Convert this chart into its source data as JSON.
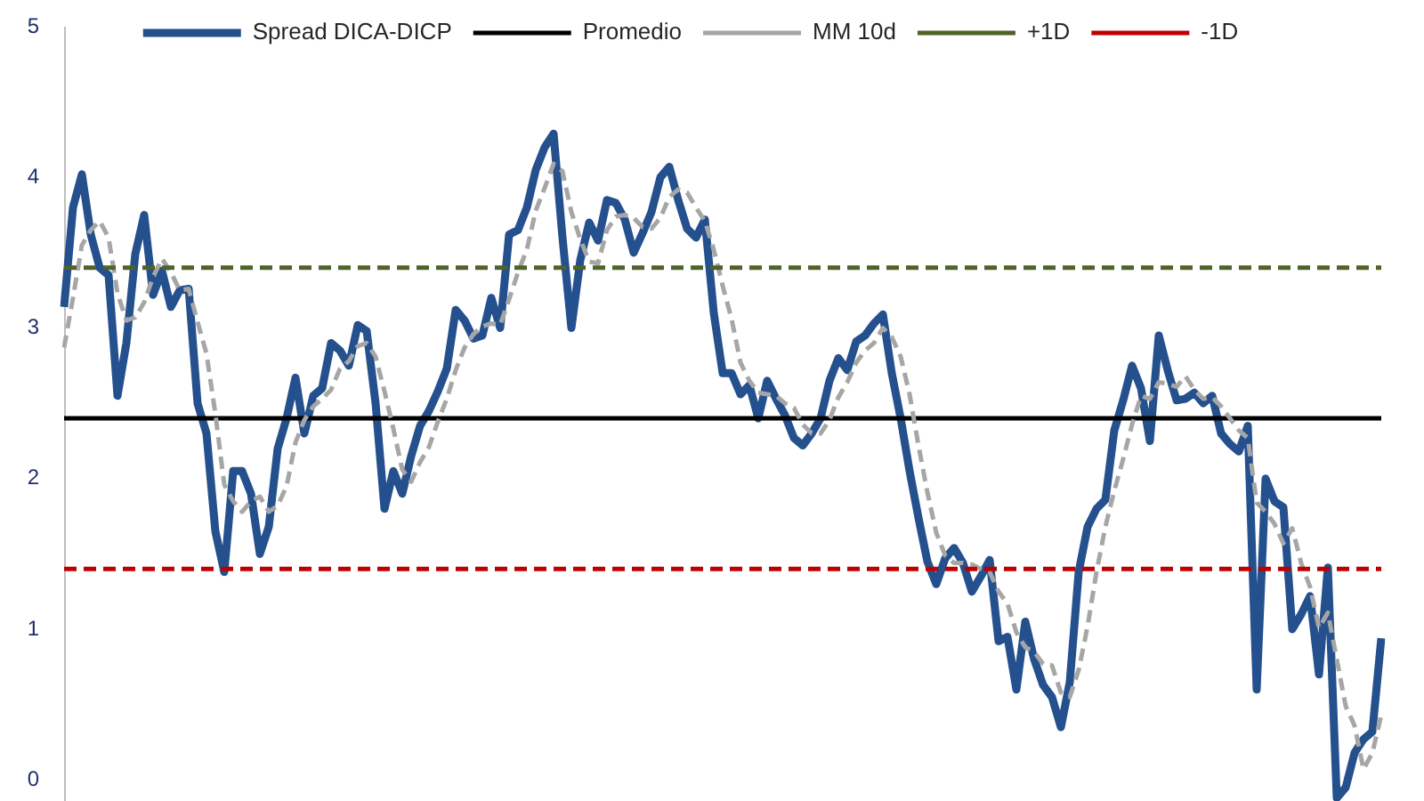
{
  "chart_data": {
    "type": "line",
    "categories": [
      null,
      null,
      null,
      null,
      null,
      null,
      null,
      null,
      null,
      null,
      null,
      null,
      null,
      null,
      null,
      null,
      null,
      null,
      null,
      null,
      null,
      null,
      null,
      null,
      null,
      null,
      null,
      null,
      null,
      null,
      null,
      null,
      null,
      null,
      null,
      null,
      null,
      null,
      null,
      null,
      null,
      null,
      null,
      null,
      null,
      null,
      null,
      null,
      null,
      null,
      null,
      null,
      null,
      null,
      null,
      null,
      null,
      null,
      null,
      null,
      null,
      null,
      null,
      null,
      null,
      null,
      null,
      null,
      null,
      null,
      null,
      null,
      null,
      null,
      null,
      null,
      null,
      null,
      null,
      null,
      null,
      null,
      null,
      null,
      null,
      null,
      null,
      null,
      null,
      null,
      null,
      null,
      null,
      null,
      null,
      null,
      null,
      null,
      null,
      null,
      null,
      null,
      null,
      null,
      null,
      null,
      null,
      null,
      null,
      null,
      null,
      null,
      null,
      null,
      null,
      null,
      null,
      null,
      null,
      null,
      null,
      null,
      null,
      null,
      null,
      null,
      null,
      null,
      null,
      null,
      null,
      null,
      null,
      null,
      null,
      null,
      null,
      null,
      null,
      null,
      null,
      null,
      null,
      null,
      null,
      null,
      null,
      null,
      null
    ],
    "series": [
      {
        "name": "Spread DICA-DICP",
        "color": "#24508e",
        "line_style": "solid",
        "values": [
          3.14,
          3.8,
          4.02,
          3.62,
          3.4,
          3.35,
          2.55,
          2.9,
          3.49,
          3.75,
          3.22,
          3.38,
          3.14,
          3.25,
          3.26,
          2.5,
          2.3,
          1.65,
          1.38,
          2.05,
          2.05,
          1.9,
          1.5,
          1.68,
          2.2,
          2.4,
          2.67,
          2.3,
          2.55,
          2.6,
          2.9,
          2.85,
          2.75,
          3.02,
          2.98,
          2.5,
          1.8,
          2.05,
          1.9,
          2.15,
          2.35,
          2.45,
          2.58,
          2.73,
          3.12,
          3.05,
          2.93,
          2.95,
          3.2,
          3.0,
          3.62,
          3.65,
          3.8,
          4.05,
          4.2,
          4.29,
          3.6,
          3.0,
          3.45,
          3.7,
          3.58,
          3.85,
          3.83,
          3.72,
          3.5,
          3.63,
          3.77,
          4.0,
          4.07,
          3.85,
          3.66,
          3.6,
          3.72,
          3.1,
          2.7,
          2.7,
          2.56,
          2.62,
          2.4,
          2.65,
          2.53,
          2.42,
          2.27,
          2.22,
          2.3,
          2.4,
          2.65,
          2.8,
          2.72,
          2.91,
          2.95,
          3.03,
          3.09,
          2.7,
          2.4,
          2.05,
          1.74,
          1.45,
          1.3,
          1.47,
          1.54,
          1.44,
          1.25,
          1.35,
          1.46,
          0.92,
          0.95,
          0.6,
          1.05,
          0.8,
          0.63,
          0.55,
          0.35,
          0.65,
          1.38,
          1.68,
          1.8,
          1.86,
          2.32,
          2.52,
          2.75,
          2.6,
          2.25,
          2.95,
          2.72,
          2.52,
          2.53,
          2.57,
          2.5,
          2.55,
          2.3,
          2.23,
          2.18,
          2.35,
          0.6,
          2.0,
          1.85,
          1.81,
          1.0,
          1.1,
          1.22,
          0.7,
          1.41,
          -0.12,
          -0.05,
          0.18,
          0.27,
          0.32,
          0.94
        ]
      },
      {
        "name": "Promedio",
        "color": "#000000",
        "line_style": "solid",
        "values": [
          2.4,
          2.4,
          2.4,
          2.4,
          2.4,
          2.4,
          2.4,
          2.4,
          2.4,
          2.4,
          2.4,
          2.4,
          2.4,
          2.4,
          2.4,
          2.4,
          2.4,
          2.4,
          2.4,
          2.4,
          2.4,
          2.4,
          2.4,
          2.4,
          2.4,
          2.4,
          2.4,
          2.4,
          2.4,
          2.4,
          2.4,
          2.4,
          2.4,
          2.4,
          2.4,
          2.4,
          2.4,
          2.4,
          2.4,
          2.4,
          2.4,
          2.4,
          2.4,
          2.4,
          2.4,
          2.4,
          2.4,
          2.4,
          2.4,
          2.4,
          2.4,
          2.4,
          2.4,
          2.4,
          2.4,
          2.4,
          2.4,
          2.4,
          2.4,
          2.4,
          2.4,
          2.4,
          2.4,
          2.4,
          2.4,
          2.4,
          2.4,
          2.4,
          2.4,
          2.4,
          2.4,
          2.4,
          2.4,
          2.4,
          2.4,
          2.4,
          2.4,
          2.4,
          2.4,
          2.4,
          2.4,
          2.4,
          2.4,
          2.4,
          2.4,
          2.4,
          2.4,
          2.4,
          2.4,
          2.4,
          2.4,
          2.4,
          2.4,
          2.4,
          2.4,
          2.4,
          2.4,
          2.4,
          2.4,
          2.4,
          2.4,
          2.4,
          2.4,
          2.4,
          2.4,
          2.4,
          2.4,
          2.4,
          2.4,
          2.4,
          2.4,
          2.4,
          2.4,
          2.4,
          2.4,
          2.4,
          2.4,
          2.4,
          2.4,
          2.4,
          2.4,
          2.4,
          2.4,
          2.4,
          2.4,
          2.4,
          2.4,
          2.4,
          2.4,
          2.4,
          2.4,
          2.4,
          2.4,
          2.4,
          2.4,
          2.4,
          2.4,
          2.4,
          2.4,
          2.4,
          2.4,
          2.4,
          2.4,
          2.4,
          2.4,
          2.4,
          2.4,
          2.4,
          2.4
        ]
      },
      {
        "name": "MM 10d",
        "color": "#a6a6a6",
        "line_style": "dashed",
        "values": [
          2.87,
          3.2,
          3.55,
          3.65,
          3.71,
          3.6,
          3.23,
          3.05,
          3.07,
          3.17,
          3.34,
          3.46,
          3.37,
          3.25,
          3.26,
          3.04,
          2.83,
          2.43,
          1.96,
          1.85,
          1.78,
          1.85,
          1.88,
          1.78,
          1.82,
          1.95,
          2.24,
          2.39,
          2.48,
          2.53,
          2.59,
          2.73,
          2.78,
          2.88,
          2.9,
          2.81,
          2.58,
          2.33,
          2.06,
          1.98,
          2.11,
          2.21,
          2.38,
          2.53,
          2.72,
          2.87,
          2.96,
          3.01,
          3.03,
          3.02,
          3.19,
          3.37,
          3.52,
          3.78,
          3.93,
          4.09,
          4.04,
          3.77,
          3.59,
          3.44,
          3.43,
          3.65,
          3.74,
          3.75,
          3.73,
          3.67,
          3.66,
          3.73,
          3.87,
          3.92,
          3.9,
          3.8,
          3.71,
          3.52,
          3.28,
          3.06,
          2.77,
          2.65,
          2.57,
          2.56,
          2.55,
          2.5,
          2.47,
          2.36,
          2.3,
          2.3,
          2.39,
          2.54,
          2.64,
          2.77,
          2.85,
          2.9,
          3.0,
          2.94,
          2.81,
          2.56,
          2.22,
          1.91,
          1.64,
          1.49,
          1.44,
          1.44,
          1.43,
          1.4,
          1.38,
          1.25,
          1.17,
          0.98,
          0.88,
          0.85,
          0.77,
          0.76,
          0.58,
          0.55,
          0.73,
          1.02,
          1.38,
          1.68,
          1.92,
          2.13,
          2.36,
          2.55,
          2.53,
          2.64,
          2.63,
          2.61,
          2.68,
          2.59,
          2.53,
          2.54,
          2.48,
          2.4,
          2.32,
          2.27,
          1.84,
          1.78,
          1.7,
          1.57,
          1.67,
          1.44,
          1.28,
          1.01,
          1.11,
          0.8,
          0.49,
          0.36,
          0.07,
          0.18,
          0.43
        ]
      },
      {
        "name": "+1D",
        "color": "#4f6228",
        "line_style": "dashed",
        "values": [
          3.4,
          3.4,
          3.4,
          3.4,
          3.4,
          3.4,
          3.4,
          3.4,
          3.4,
          3.4,
          3.4,
          3.4,
          3.4,
          3.4,
          3.4,
          3.4,
          3.4,
          3.4,
          3.4,
          3.4,
          3.4,
          3.4,
          3.4,
          3.4,
          3.4,
          3.4,
          3.4,
          3.4,
          3.4,
          3.4,
          3.4,
          3.4,
          3.4,
          3.4,
          3.4,
          3.4,
          3.4,
          3.4,
          3.4,
          3.4,
          3.4,
          3.4,
          3.4,
          3.4,
          3.4,
          3.4,
          3.4,
          3.4,
          3.4,
          3.4,
          3.4,
          3.4,
          3.4,
          3.4,
          3.4,
          3.4,
          3.4,
          3.4,
          3.4,
          3.4,
          3.4,
          3.4,
          3.4,
          3.4,
          3.4,
          3.4,
          3.4,
          3.4,
          3.4,
          3.4,
          3.4,
          3.4,
          3.4,
          3.4,
          3.4,
          3.4,
          3.4,
          3.4,
          3.4,
          3.4,
          3.4,
          3.4,
          3.4,
          3.4,
          3.4,
          3.4,
          3.4,
          3.4,
          3.4,
          3.4,
          3.4,
          3.4,
          3.4,
          3.4,
          3.4,
          3.4,
          3.4,
          3.4,
          3.4,
          3.4,
          3.4,
          3.4,
          3.4,
          3.4,
          3.4,
          3.4,
          3.4,
          3.4,
          3.4,
          3.4,
          3.4,
          3.4,
          3.4,
          3.4,
          3.4,
          3.4,
          3.4,
          3.4,
          3.4,
          3.4,
          3.4,
          3.4,
          3.4,
          3.4,
          3.4,
          3.4,
          3.4,
          3.4,
          3.4,
          3.4,
          3.4,
          3.4,
          3.4,
          3.4,
          3.4,
          3.4,
          3.4,
          3.4,
          3.4,
          3.4,
          3.4,
          3.4,
          3.4,
          3.4,
          3.4,
          3.4,
          3.4,
          3.4,
          3.4
        ]
      },
      {
        "name": "-1D",
        "color": "#c00000",
        "line_style": "dashed",
        "values": [
          1.4,
          1.4,
          1.4,
          1.4,
          1.4,
          1.4,
          1.4,
          1.4,
          1.4,
          1.4,
          1.4,
          1.4,
          1.4,
          1.4,
          1.4,
          1.4,
          1.4,
          1.4,
          1.4,
          1.4,
          1.4,
          1.4,
          1.4,
          1.4,
          1.4,
          1.4,
          1.4,
          1.4,
          1.4,
          1.4,
          1.4,
          1.4,
          1.4,
          1.4,
          1.4,
          1.4,
          1.4,
          1.4,
          1.4,
          1.4,
          1.4,
          1.4,
          1.4,
          1.4,
          1.4,
          1.4,
          1.4,
          1.4,
          1.4,
          1.4,
          1.4,
          1.4,
          1.4,
          1.4,
          1.4,
          1.4,
          1.4,
          1.4,
          1.4,
          1.4,
          1.4,
          1.4,
          1.4,
          1.4,
          1.4,
          1.4,
          1.4,
          1.4,
          1.4,
          1.4,
          1.4,
          1.4,
          1.4,
          1.4,
          1.4,
          1.4,
          1.4,
          1.4,
          1.4,
          1.4,
          1.4,
          1.4,
          1.4,
          1.4,
          1.4,
          1.4,
          1.4,
          1.4,
          1.4,
          1.4,
          1.4,
          1.4,
          1.4,
          1.4,
          1.4,
          1.4,
          1.4,
          1.4,
          1.4,
          1.4,
          1.4,
          1.4,
          1.4,
          1.4,
          1.4,
          1.4,
          1.4,
          1.4,
          1.4,
          1.4,
          1.4,
          1.4,
          1.4,
          1.4,
          1.4,
          1.4,
          1.4,
          1.4,
          1.4,
          1.4,
          1.4,
          1.4,
          1.4,
          1.4,
          1.4,
          1.4,
          1.4,
          1.4,
          1.4,
          1.4,
          1.4,
          1.4,
          1.4,
          1.4,
          1.4,
          1.4,
          1.4,
          1.4,
          1.4,
          1.4,
          1.4,
          1.4,
          1.4,
          1.4,
          1.4,
          1.4,
          1.4,
          1.4,
          1.4
        ]
      }
    ],
    "ylim": [
      -0.14,
      5
    ],
    "yticks": [
      0,
      1,
      2,
      3,
      4,
      5
    ],
    "grid": false,
    "legend": "top",
    "marker": "none",
    "tick_labels": "y"
  }
}
